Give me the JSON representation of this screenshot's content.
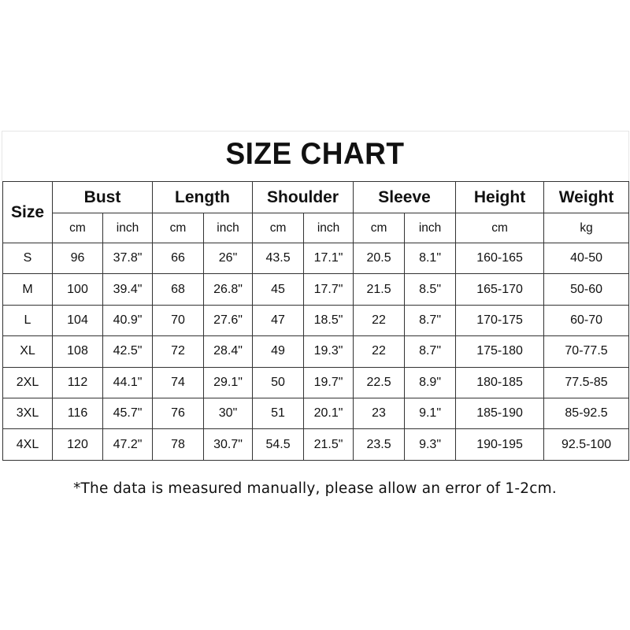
{
  "title": "SIZE CHART",
  "header": {
    "size": "Size",
    "groups": [
      "Bust",
      "Length",
      "Shoulder",
      "Sleeve",
      "Height",
      "Weight"
    ],
    "units": [
      "cm",
      "inch",
      "cm",
      "inch",
      "cm",
      "inch",
      "cm",
      "inch",
      "cm",
      "kg"
    ]
  },
  "rows": [
    [
      "S",
      "96",
      "37.8\"",
      "66",
      "26\"",
      "43.5",
      "17.1\"",
      "20.5",
      "8.1\"",
      "160-165",
      "40-50"
    ],
    [
      "M",
      "100",
      "39.4\"",
      "68",
      "26.8\"",
      "45",
      "17.7\"",
      "21.5",
      "8.5\"",
      "165-170",
      "50-60"
    ],
    [
      "L",
      "104",
      "40.9\"",
      "70",
      "27.6\"",
      "47",
      "18.5\"",
      "22",
      "8.7\"",
      "170-175",
      "60-70"
    ],
    [
      "XL",
      "108",
      "42.5\"",
      "72",
      "28.4\"",
      "49",
      "19.3\"",
      "22",
      "8.7\"",
      "175-180",
      "70-77.5"
    ],
    [
      "2XL",
      "112",
      "44.1\"",
      "74",
      "29.1\"",
      "50",
      "19.7\"",
      "22.5",
      "8.9\"",
      "180-185",
      "77.5-85"
    ],
    [
      "3XL",
      "116",
      "45.7\"",
      "76",
      "30\"",
      "51",
      "20.1\"",
      "23",
      "9.1\"",
      "185-190",
      "85-92.5"
    ],
    [
      "4XL",
      "120",
      "47.2\"",
      "78",
      "30.7\"",
      "54.5",
      "21.5\"",
      "23.5",
      "9.3\"",
      "190-195",
      "92.5-100"
    ]
  ],
  "footnote": "*The data is measured manually, please allow an error of 1-2cm."
}
